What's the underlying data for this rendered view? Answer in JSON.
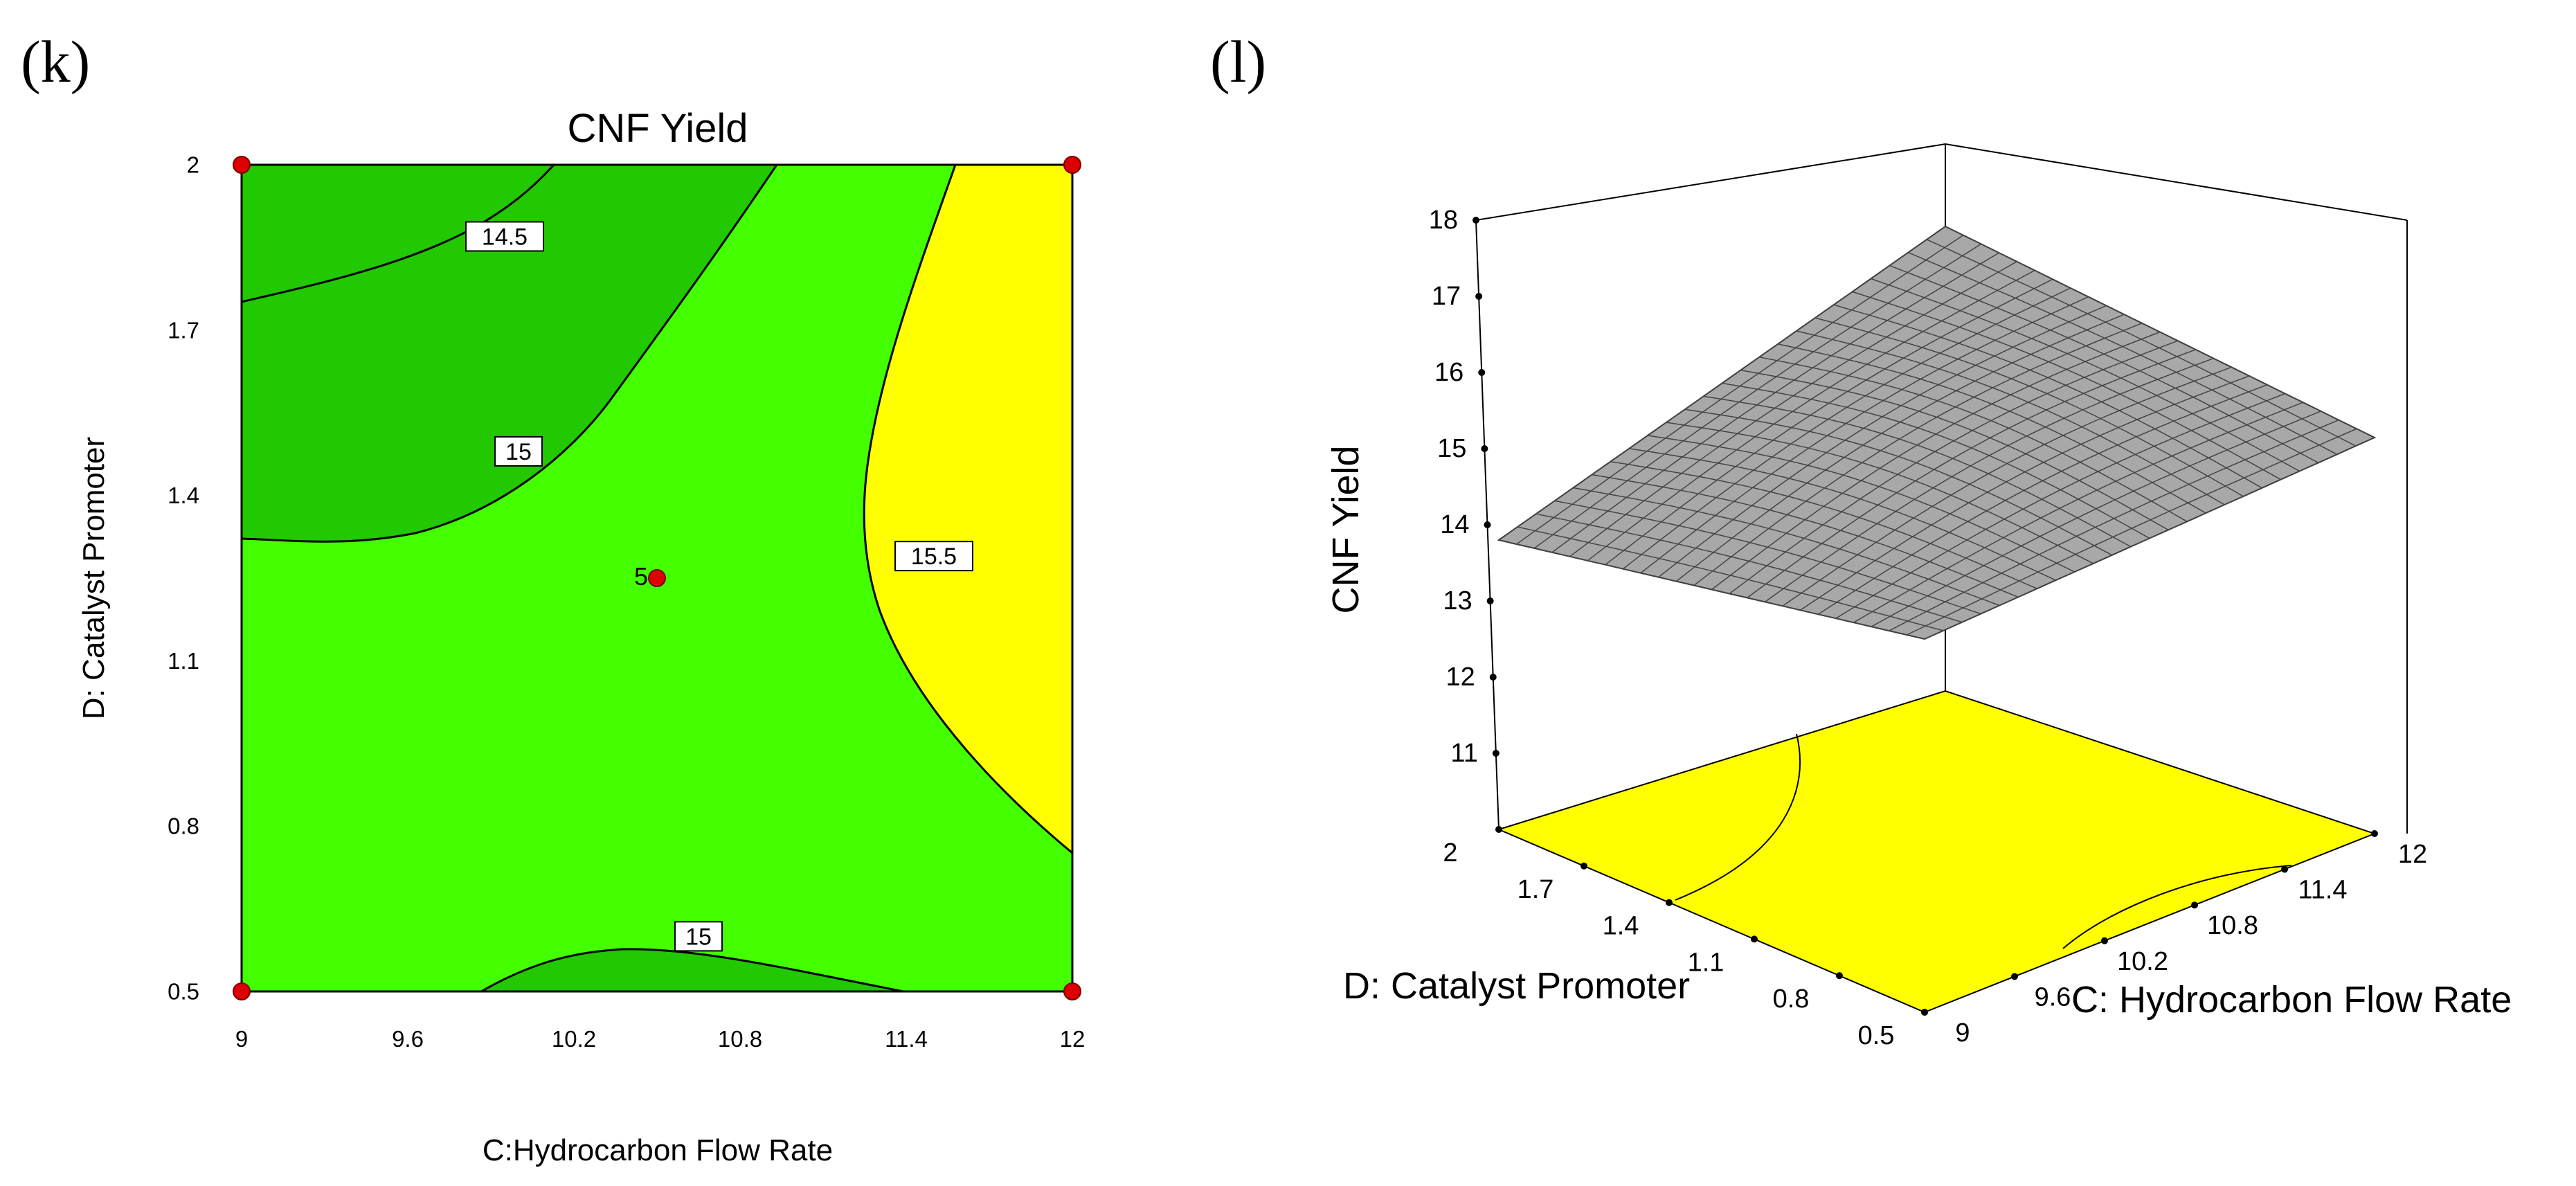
{
  "panels": [
    {
      "label": "(k)"
    },
    {
      "label": "(l)"
    }
  ],
  "colors": {
    "low_zone": "#22c800",
    "mid_zone": "#44ff00",
    "high_zone": "#ffff00",
    "design_point": "#dd0000",
    "surface_fill": "#a8a8a8"
  },
  "chart_data": [
    {
      "type": "contour",
      "title": "CNF Yield",
      "xlabel": "C:Hydrocarbon Flow Rate",
      "ylabel": "D: Catalyst Promoter",
      "xlim": [
        9,
        12
      ],
      "ylim": [
        0.5,
        2
      ],
      "x_ticks": [
        "9",
        "9.6",
        "10.2",
        "10.8",
        "11.4",
        "12"
      ],
      "y_ticks": [
        "0.5",
        "0.8",
        "1.1",
        "1.4",
        "1.7",
        "2"
      ],
      "contour_levels": [
        {
          "level": "14.5",
          "label_at": [
            9.95,
            1.87
          ]
        },
        {
          "level": "15",
          "label_at": [
            10.0,
            1.48
          ]
        },
        {
          "level": "15.5",
          "label_at": [
            11.5,
            1.29
          ]
        },
        {
          "level": "15",
          "label_at": [
            10.65,
            0.6
          ]
        }
      ],
      "design_points": [
        {
          "x": 9,
          "y": 2
        },
        {
          "x": 12,
          "y": 2
        },
        {
          "x": 9,
          "y": 0.5
        },
        {
          "x": 12,
          "y": 0.5
        },
        {
          "x": 10.5,
          "y": 1.25,
          "label": "5"
        }
      ]
    },
    {
      "type": "surface",
      "zlabel": "CNF Yield",
      "xlabel": "C: Hydrocarbon Flow Rate",
      "ylabel": "D: Catalyst Promoter",
      "z_ticks": [
        "11",
        "12",
        "13",
        "14",
        "15",
        "16",
        "17",
        "18"
      ],
      "x_ticks": [
        "9",
        "9.6",
        "10.2",
        "10.8",
        "11.4",
        "12"
      ],
      "y_ticks": [
        "0.5",
        "0.8",
        "1.1",
        "1.4",
        "1.7",
        "2"
      ],
      "zlim": [
        10,
        18
      ],
      "surface_corners": [
        {
          "x": 9,
          "y": 2,
          "z": 13.8
        },
        {
          "x": 12,
          "y": 2,
          "z": 16.1
        },
        {
          "x": 12,
          "y": 0.5,
          "z": 15.2
        },
        {
          "x": 9,
          "y": 0.5,
          "z": 14.9
        }
      ]
    }
  ]
}
